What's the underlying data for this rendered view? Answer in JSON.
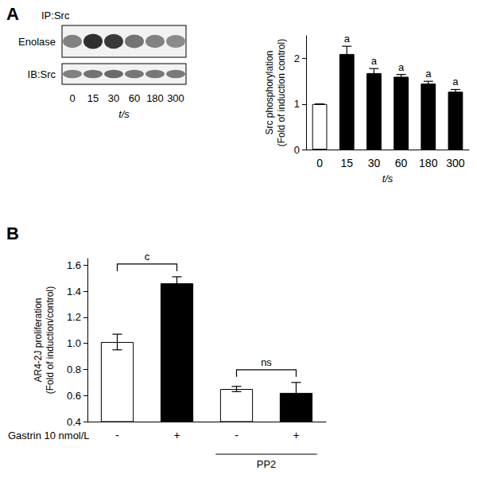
{
  "chart_data": [
    {
      "panel_label": "A",
      "type": "bar",
      "categories": [
        "0",
        "15",
        "30",
        "60",
        "180",
        "300"
      ],
      "values": [
        1,
        2.1,
        1.68,
        1.6,
        1.45,
        1.27
      ],
      "errors": [
        0,
        0.17,
        0.1,
        0.05,
        0.05,
        0.05
      ],
      "colors": [
        "#ffffff",
        "#000000",
        "#000000",
        "#000000",
        "#000000",
        "#000000"
      ],
      "annotations": [
        null,
        "a",
        "a",
        "a",
        "a",
        "a"
      ],
      "x_label": "t/s",
      "y_label": "Src phosphorylation\n(Fold of induction control)",
      "ylim": [
        0,
        2.5
      ],
      "yticks": [
        0,
        1,
        2
      ],
      "grid": false
    },
    {
      "panel_label": "B",
      "type": "bar",
      "categories": [
        "-",
        "+",
        "-",
        "+"
      ],
      "values": [
        1.01,
        1.46,
        0.65,
        0.62
      ],
      "errors": [
        0.06,
        0.05,
        0.02,
        0.08
      ],
      "colors": [
        "#ffffff",
        "#000000",
        "#ffffff",
        "#000000"
      ],
      "row_label": "Gastrin 10 nmol/L",
      "groups": [
        {
          "label": "PP2",
          "from": 2,
          "to": 3
        }
      ],
      "comparisons": [
        {
          "from": 0,
          "to": 1,
          "label": "c"
        },
        {
          "from": 2,
          "to": 3,
          "label": "ns"
        }
      ],
      "y_label": "AR4-2J proliferation\n(Fold of induction/control)",
      "ylim": [
        0.4,
        1.65
      ],
      "yticks": [
        0.4,
        0.6,
        0.8,
        {
          "value": 1,
          "label": "1.0"
        },
        1.2,
        1.4,
        1.6
      ],
      "grid": false
    }
  ],
  "blot": {
    "header": "IP:Src",
    "rows": [
      {
        "label": "Enolase"
      },
      {
        "label": "IB:Src"
      }
    ],
    "lanes": [
      "0",
      "15",
      "30",
      "60",
      "180",
      "300"
    ],
    "x_label": "t/s"
  }
}
